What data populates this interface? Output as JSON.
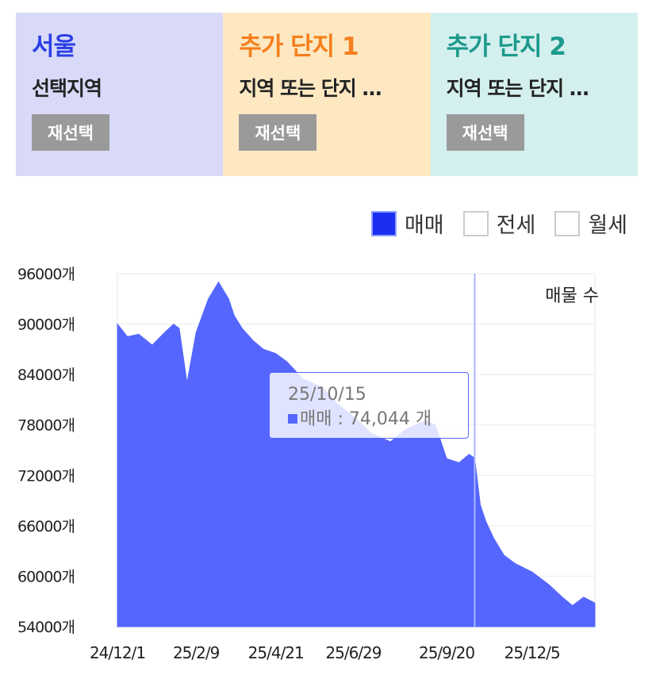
{
  "cards": [
    {
      "title": "서울",
      "subtitle": "선택지역",
      "button": "재선택",
      "bg": "#d8daf8",
      "title_color": "#2b3fe6"
    },
    {
      "title": "추가 단지 1",
      "subtitle": "지역 또는 단지 …",
      "button": "재선택",
      "bg": "#fde8c2",
      "title_color": "#f57f1c"
    },
    {
      "title": "추가 단지 2",
      "subtitle": "지역 또는 단지 …",
      "button": "재선택",
      "bg": "#d3efee",
      "title_color": "#1c9a8c"
    }
  ],
  "legend": [
    {
      "label": "매매",
      "checked": true
    },
    {
      "label": "전세",
      "checked": false
    },
    {
      "label": "월세",
      "checked": false
    }
  ],
  "tooltip": {
    "date": "25/10/15",
    "text": "매매 : 74,044 개"
  },
  "chart_data": {
    "type": "area",
    "title": "",
    "series_label": "매물 수",
    "ylabel": "",
    "xlabel": "",
    "ylim": [
      54000,
      96000
    ],
    "y_ticks": [
      "96000개",
      "90000개",
      "84000개",
      "78000개",
      "72000개",
      "66000개",
      "60000개",
      "54000개"
    ],
    "y_tick_values": [
      96000,
      90000,
      84000,
      78000,
      72000,
      66000,
      60000,
      54000
    ],
    "x_ticks": [
      "24/12/1",
      "25/2/9",
      "25/4/21",
      "25/6/29",
      "25/9/20",
      "25/12/5"
    ],
    "x": [
      "24/12/1",
      "24/12/10",
      "24/12/20",
      "25/1/1",
      "25/1/12",
      "25/1/20",
      "25/1/25",
      "25/2/1",
      "25/2/9",
      "25/2/20",
      "25/3/1",
      "25/3/10",
      "25/3/15",
      "25/3/22",
      "25/4/1",
      "25/4/10",
      "25/4/21",
      "25/5/1",
      "25/5/15",
      "25/6/1",
      "25/6/15",
      "25/6/29",
      "25/7/15",
      "25/8/1",
      "25/8/15",
      "25/9/1",
      "25/9/10",
      "25/9/20",
      "25/10/1",
      "25/10/10",
      "25/10/15",
      "25/10/20",
      "25/10/25",
      "25/11/1",
      "25/11/10",
      "25/11/20",
      "25/12/5",
      "25/12/20",
      "26/1/1",
      "26/1/10",
      "26/1/20",
      "26/1/30"
    ],
    "series": [
      {
        "name": "매매",
        "color": "#5566ff",
        "values": [
          90000,
          88500,
          88800,
          87500,
          89000,
          90000,
          89500,
          83000,
          89000,
          93000,
          95000,
          93000,
          91000,
          89500,
          88000,
          87000,
          86500,
          85500,
          83500,
          82500,
          80500,
          79000,
          77000,
          76000,
          77500,
          78500,
          78000,
          74000,
          73500,
          74500,
          74044,
          68500,
          66500,
          64500,
          62500,
          61500,
          60500,
          59000,
          57500,
          56500,
          57500,
          56800
        ]
      }
    ],
    "grid": true,
    "legend_position": "top-right"
  }
}
